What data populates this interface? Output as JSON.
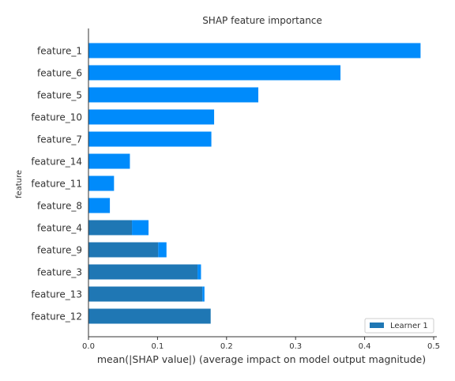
{
  "chart_data": {
    "type": "bar",
    "orientation": "horizontal",
    "title": "SHAP feature importance",
    "xlabel": "mean(|SHAP value|) (average impact on model output magnitude)",
    "ylabel": "feature",
    "xlim": [
      0,
      0.5
    ],
    "xticks": [
      "0.0",
      "0.1",
      "0.2",
      "0.3",
      "0.4",
      "0.5"
    ],
    "grid": false,
    "legend_position": "bottom-right",
    "categories": [
      "feature_1",
      "feature_6",
      "feature_5",
      "feature_10",
      "feature_7",
      "feature_14",
      "feature_11",
      "feature_8",
      "feature_4",
      "feature_9",
      "feature_3",
      "feature_13",
      "feature_12"
    ],
    "series": [
      {
        "name": "Learner 1",
        "color": "#1f77b4",
        "values": [
          0.0,
          0.0,
          0.0,
          0.0,
          0.0,
          0.0,
          0.0,
          0.0,
          0.063,
          0.101,
          0.158,
          0.165,
          0.177
        ]
      },
      {
        "name": "",
        "color": "#008bfb",
        "values": [
          0.481,
          0.365,
          0.246,
          0.182,
          0.178,
          0.06,
          0.037,
          0.031,
          0.024,
          0.012,
          0.005,
          0.003,
          0.0
        ]
      }
    ]
  }
}
